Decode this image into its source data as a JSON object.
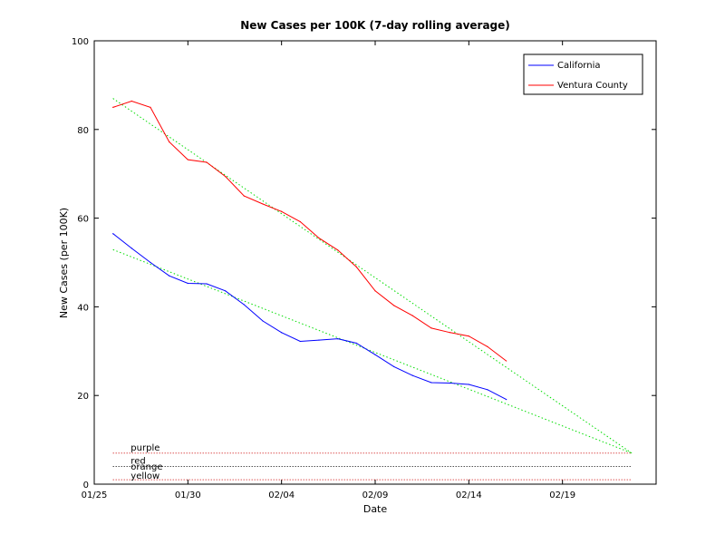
{
  "chart_data": {
    "type": "line",
    "title": "New Cases per 100K (7-day rolling average)",
    "xlabel": "Date",
    "ylabel": "New Cases (per 100K)",
    "x_unit": "days since 01/25",
    "xlim": [
      0,
      30
    ],
    "ylim": [
      0,
      100
    ],
    "x_ticks": [
      {
        "value": 0,
        "label": "01/25"
      },
      {
        "value": 5,
        "label": "01/30"
      },
      {
        "value": 10,
        "label": "02/04"
      },
      {
        "value": 15,
        "label": "02/09"
      },
      {
        "value": 20,
        "label": "02/14"
      },
      {
        "value": 25,
        "label": "02/19"
      }
    ],
    "y_ticks": [
      0,
      20,
      40,
      60,
      80,
      100
    ],
    "grid": false,
    "legend_position": "top-right",
    "series": [
      {
        "name": "California",
        "color": "#0000ff",
        "x": [
          1,
          2,
          3,
          4,
          5,
          6,
          7,
          8,
          9,
          10,
          11,
          12,
          13,
          14,
          15,
          16,
          17,
          18,
          19,
          20,
          21,
          22
        ],
        "values": [
          56.5,
          53.2,
          50.0,
          47.0,
          45.3,
          45.2,
          43.6,
          40.5,
          36.8,
          34.2,
          32.2,
          32.5,
          32.8,
          31.8,
          29.2,
          26.5,
          24.5,
          22.9,
          22.8,
          22.5,
          21.3,
          19.1
        ]
      },
      {
        "name": "Ventura County",
        "color": "#ff0000",
        "x": [
          1,
          2,
          3,
          4,
          5,
          6,
          7,
          8,
          9,
          10,
          11,
          12,
          13,
          14,
          15,
          16,
          17,
          18,
          19,
          20,
          21,
          22
        ],
        "values": [
          85.0,
          86.4,
          85.0,
          77.2,
          73.2,
          72.6,
          69.4,
          65.0,
          63.2,
          61.5,
          59.2,
          55.5,
          52.8,
          49.0,
          43.6,
          40.3,
          38.0,
          35.2,
          34.2,
          33.4,
          31.0,
          27.8
        ]
      }
    ],
    "trend_lines": [
      {
        "name": "California trend",
        "color": "#00dd00",
        "from": [
          1,
          52.9
        ],
        "to": [
          28.7,
          7.0
        ]
      },
      {
        "name": "Ventura County trend",
        "color": "#00dd00",
        "from": [
          1,
          87.0
        ],
        "to": [
          28.7,
          7.0
        ]
      }
    ],
    "reference_lines": [
      {
        "label": "purple",
        "value": 7,
        "color": "#cc0000",
        "style": "dotted"
      },
      {
        "label": "red",
        "value": 4,
        "color": "#000000",
        "style": "dotted"
      },
      {
        "label": "orange",
        "value": 2,
        "color": "#000000",
        "style": "none"
      },
      {
        "label": "yellow",
        "value": 1,
        "color": "#cc0000",
        "style": "dotted"
      }
    ],
    "reference_x_range": [
      1,
      28.7
    ]
  }
}
